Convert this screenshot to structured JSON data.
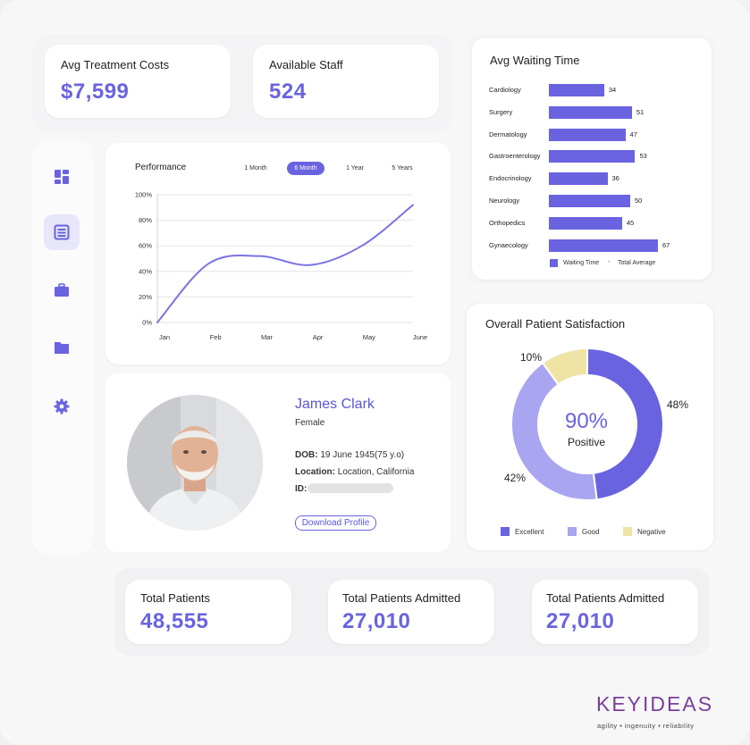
{
  "stats_top": [
    {
      "label": "Avg Treatment Costs",
      "value": "$7,599"
    },
    {
      "label": "Available Staff",
      "value": "524"
    }
  ],
  "sidebar": {
    "items": [
      {
        "icon": "dashboard-icon",
        "active": false
      },
      {
        "icon": "list-icon",
        "active": true
      },
      {
        "icon": "briefcase-icon",
        "active": false
      },
      {
        "icon": "folder-icon",
        "active": false
      },
      {
        "icon": "gear-icon",
        "active": false
      }
    ]
  },
  "performance": {
    "title": "Performance",
    "tabs": [
      "1 Month",
      "6 Month",
      "1 Year",
      "5 Years"
    ],
    "active_tab": "6 Month"
  },
  "waiting_time": {
    "title": "Avg Waiting Time",
    "legend_series": "Waiting Time",
    "legend_avg": "Total Average"
  },
  "satisfaction": {
    "title": "Overall Patient Satisfaction",
    "center_value": "90%",
    "center_label": "Positive",
    "slice_labels": [
      "48%",
      "42%",
      "10%"
    ],
    "legend": [
      "Excellent",
      "Good",
      "Negative"
    ]
  },
  "profile": {
    "name": "James Clark",
    "gender": "Female",
    "dob_label": "DOB:",
    "dob_value": "19 June 1945(75 y.o)",
    "location_label": "Location:",
    "location_value": "Location, California",
    "id_label": "ID:",
    "download_label": "Download Profile"
  },
  "stats_bottom": [
    {
      "label": "Total Patients",
      "value": "48,555"
    },
    {
      "label": "Total Patients Admitted",
      "value": "27,010"
    },
    {
      "label": "Total Patients Admitted",
      "value": "27,010"
    }
  ],
  "brand": {
    "name": "KEYIDEAS",
    "tagline": "agility • ingenuity • reliability"
  },
  "colors": {
    "accent": "#6a63e0",
    "good": "#a9a5f0",
    "negative": "#f0e3a6"
  },
  "chart_data": [
    {
      "type": "line",
      "title": "Performance",
      "x": [
        "Jan",
        "Feb",
        "Mar",
        "Apr",
        "May",
        "June"
      ],
      "series": [
        {
          "values": [
            0,
            46,
            52,
            45,
            60,
            92
          ]
        }
      ],
      "y_ticks": [
        "0%",
        "20%",
        "40%",
        "60%",
        "80%",
        "100%"
      ],
      "ylim": [
        0,
        100
      ],
      "grid": true
    },
    {
      "type": "bar",
      "orientation": "horizontal",
      "title": "Avg Waiting Time",
      "categories": [
        "Cardiology",
        "Surgery",
        "Dermatology",
        "Gastroenterology",
        "Endocrinology",
        "Neurology",
        "Orthopedics",
        "Gynaecology"
      ],
      "series": [
        {
          "name": "Waiting Time",
          "values": [
            34,
            51,
            47,
            53,
            36,
            50,
            45,
            67
          ]
        }
      ],
      "legend": [
        "Waiting Time",
        "Total Average"
      ]
    },
    {
      "type": "pie",
      "title": "Overall Patient Satisfaction",
      "categories": [
        "Excellent",
        "Good",
        "Negative"
      ],
      "values": [
        48,
        42,
        10
      ],
      "labels": [
        "48%",
        "42%",
        "10%"
      ],
      "donut": true
    }
  ]
}
